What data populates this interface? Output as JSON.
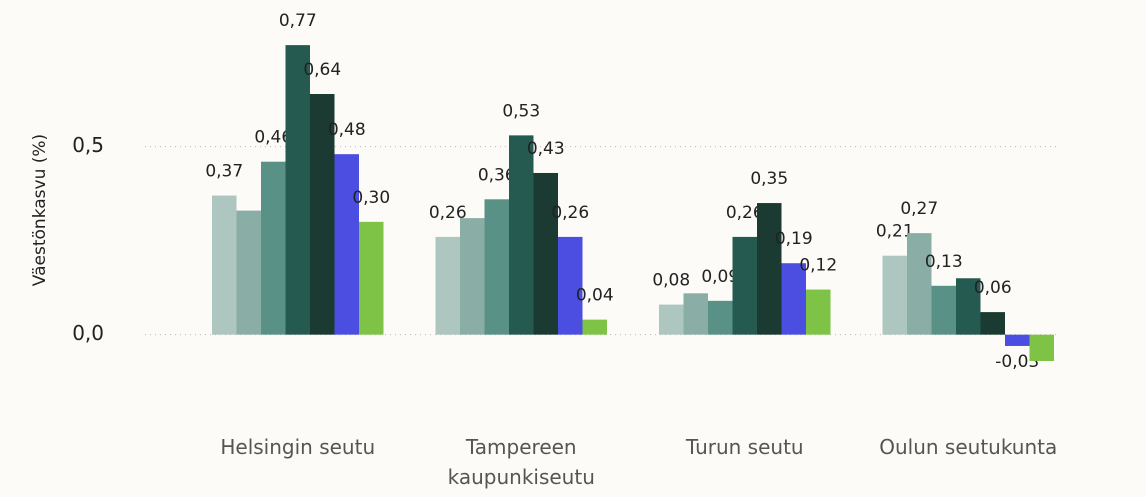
{
  "chart_data": {
    "type": "bar",
    "y_label": "Väestönkasvu (%)",
    "categories": [
      "Helsingin seutu",
      "Tampereen kaupunkiseutu",
      "Turun seutu",
      "Oulun seutukunta"
    ],
    "series": [
      {
        "color": "#adc6c0",
        "values": [
          0.37,
          0.26,
          0.08,
          0.21
        ],
        "value_labels": [
          "0,37",
          "0,26",
          "0,08",
          "0,21"
        ]
      },
      {
        "color": "#8aaea6",
        "values": [
          0.33,
          0.31,
          0.11,
          0.27
        ],
        "value_labels": [
          null,
          null,
          null,
          "0,27"
        ]
      },
      {
        "color": "#5a9186",
        "values": [
          0.46,
          0.36,
          0.09,
          0.13
        ],
        "value_labels": [
          "0,46",
          "0,36",
          "0,09",
          "0,13"
        ]
      },
      {
        "color": "#245a50",
        "values": [
          0.77,
          0.53,
          0.26,
          0.15
        ],
        "value_labels": [
          "0,77",
          "0,53",
          "0,26",
          null
        ]
      },
      {
        "color": "#1a3a32",
        "values": [
          0.64,
          0.43,
          0.35,
          0.06
        ],
        "value_labels": [
          "0,64",
          "0,43",
          "0,35",
          "0,06"
        ]
      },
      {
        "color": "#4b4ee0",
        "values": [
          0.48,
          0.26,
          0.19,
          -0.03
        ],
        "value_labels": [
          "0,48",
          "0,26",
          "0,19",
          "-0,03"
        ]
      },
      {
        "color": "#7ec345",
        "values": [
          0.3,
          0.04,
          0.12,
          -0.07
        ],
        "value_labels": [
          "0,30",
          "0,04",
          "0,12",
          null
        ]
      }
    ],
    "ylim": [
      -0.17,
      0.89
    ],
    "yticks": [
      {
        "value": 0,
        "label": "0,0"
      },
      {
        "value": 0.5,
        "label": "0,5"
      }
    ],
    "grid": true
  }
}
